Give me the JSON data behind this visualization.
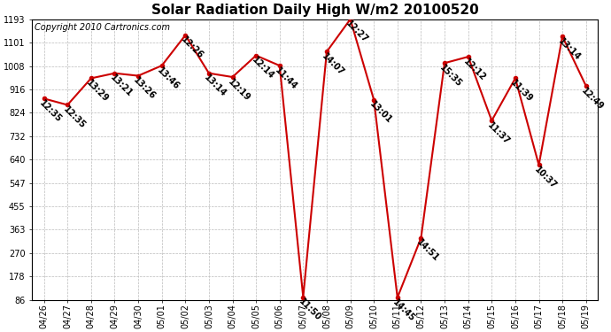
{
  "title": "Solar Radiation Daily High W/m2 20100520",
  "copyright": "Copyright 2010 Cartronics.com",
  "dates": [
    "04/26",
    "04/27",
    "04/28",
    "04/29",
    "04/30",
    "05/01",
    "05/02",
    "05/03",
    "05/04",
    "05/05",
    "05/06",
    "05/07",
    "05/08",
    "05/09",
    "05/10",
    "05/11",
    "05/12",
    "05/13",
    "05/14",
    "05/15",
    "05/16",
    "05/17",
    "05/18",
    "05/19"
  ],
  "values": [
    880,
    855,
    960,
    980,
    970,
    1010,
    1130,
    980,
    965,
    1050,
    1010,
    97,
    1065,
    1193,
    875,
    95,
    330,
    1020,
    1045,
    793,
    960,
    618,
    1125,
    930
  ],
  "labels": [
    "12:35",
    "12:35",
    "13:29",
    "13:21",
    "13:26",
    "13:46",
    "12:26",
    "13:14",
    "12:19",
    "12:14",
    "11:44",
    "11:50",
    "14:07",
    "12:27",
    "13:01",
    "14:45",
    "14:51",
    "15:35",
    "12:12",
    "11:37",
    "11:39",
    "10:37",
    "13:14",
    "12:49"
  ],
  "yticks": [
    86.0,
    178.2,
    270.5,
    362.8,
    455.0,
    547.2,
    639.5,
    731.8,
    824.0,
    916.2,
    1008.5,
    1100.8,
    1193.0
  ],
  "ymin": 86.0,
  "ymax": 1193.0,
  "line_color": "#cc0000",
  "marker_color": "#cc0000",
  "bg_color": "#ffffff",
  "grid_color": "#bbbbbb",
  "title_fontsize": 11,
  "tick_fontsize": 7,
  "copyright_fontsize": 7,
  "label_fontsize": 7
}
